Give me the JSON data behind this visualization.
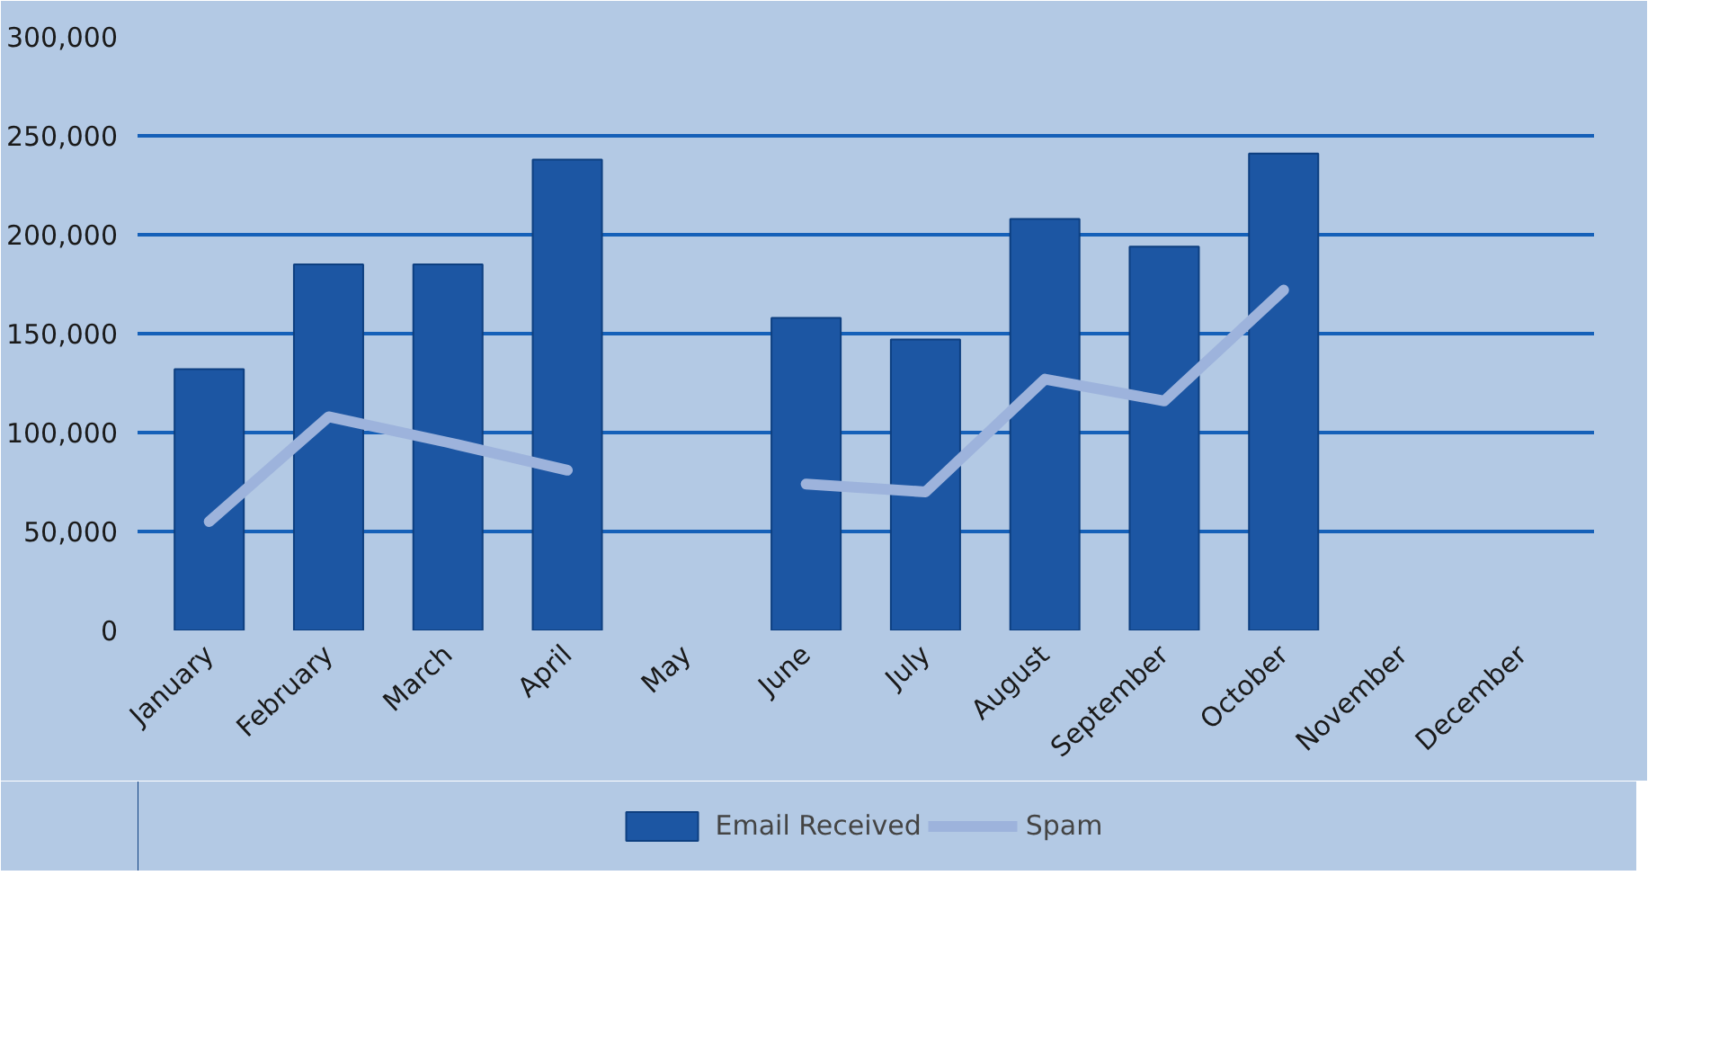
{
  "chart_data": {
    "type": "bar",
    "categories": [
      "January",
      "February",
      "March",
      "April",
      "May",
      "June",
      "July",
      "August",
      "September",
      "October",
      "November",
      "December"
    ],
    "series": [
      {
        "name": "Email Received",
        "color": "#1c56a3",
        "values": [
          132000,
          185000,
          185000,
          238000,
          null,
          158000,
          147000,
          208000,
          194000,
          241000,
          null,
          null
        ]
      },
      {
        "name": "Spam",
        "color": "#9db3dc",
        "type": "line",
        "values": [
          55000,
          108000,
          95000,
          81000,
          null,
          74000,
          70000,
          127000,
          116000,
          172000,
          null,
          null
        ]
      }
    ],
    "ylim": [
      0,
      300000
    ],
    "yticks": [
      {
        "value": 0,
        "label": "0"
      },
      {
        "value": 50000,
        "label": "50,000"
      },
      {
        "value": 100000,
        "label": "100,000"
      },
      {
        "value": 150000,
        "label": "150,000"
      },
      {
        "value": 200000,
        "label": "200,000"
      },
      {
        "value": 250000,
        "label": "250,000"
      },
      {
        "value": 300000,
        "label": "300,000"
      }
    ],
    "grid": "y",
    "legend": "bottom"
  }
}
